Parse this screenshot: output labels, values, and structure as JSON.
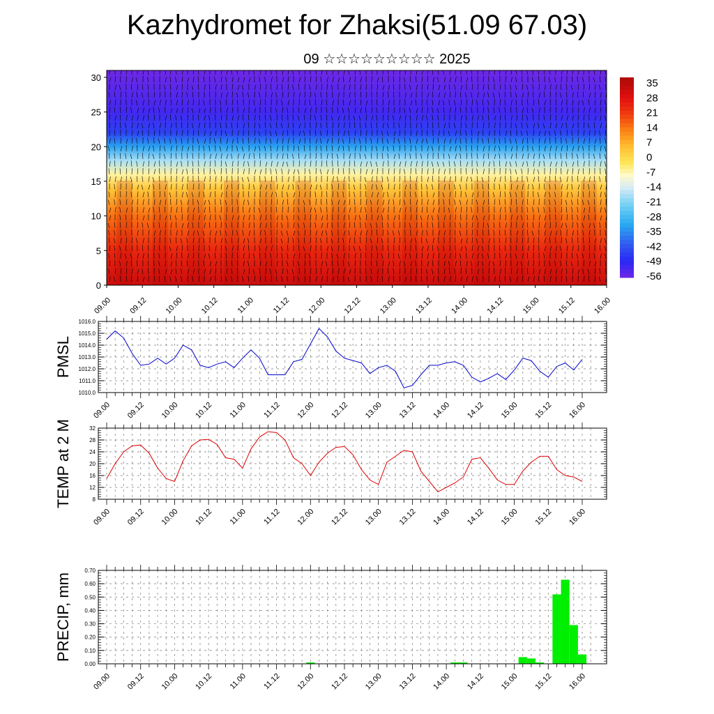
{
  "header": {
    "title": "Kazhydromet for Zhaksi(51.09 67.03)",
    "subtitle": "09 ☆☆☆☆☆☆☆☆☆ 2025"
  },
  "chart_data": [
    {
      "type": "heatmap",
      "name": "cross-section",
      "x_ticks": [
        "09.00",
        "09.12",
        "10.00",
        "10.12",
        "11.00",
        "11.12",
        "12.00",
        "12.12",
        "13.00",
        "13.12",
        "14.00",
        "14.12",
        "15.00",
        "15.12",
        "16.00"
      ],
      "y_ticks": [
        "0",
        "5",
        "10",
        "15",
        "20",
        "25",
        "30"
      ],
      "ylim": [
        0,
        31
      ],
      "colorbar_labels": [
        "35",
        "28",
        "21",
        "14",
        "7",
        "0",
        "-7",
        "-14",
        "-21",
        "-28",
        "-35",
        "-42",
        "-49",
        "-56"
      ],
      "colorbar_range": [
        -60,
        38
      ],
      "level_profile": [
        {
          "y": 0,
          "v": 32
        },
        {
          "y": 5,
          "v": 24
        },
        {
          "y": 10,
          "v": 14
        },
        {
          "y": 14,
          "v": 2
        },
        {
          "y": 16,
          "v": -8
        },
        {
          "y": 18,
          "v": -20
        },
        {
          "y": 20,
          "v": -35
        },
        {
          "y": 22,
          "v": -48
        },
        {
          "y": 25,
          "v": -55
        },
        {
          "y": 31,
          "v": -60
        }
      ]
    },
    {
      "type": "line",
      "name": "pmsl",
      "ylabel": "PMSL",
      "ylim": [
        1010.0,
        1016.0
      ],
      "y_ticks": [
        "1010.0",
        "1011.0",
        "1012.0",
        "1013.0",
        "1014.0",
        "1015.0",
        "1016.0"
      ],
      "x_ticks": [
        "09.00",
        "09.12",
        "10.00",
        "10.12",
        "11.00",
        "11.12",
        "12.00",
        "12.12",
        "13.00",
        "13.12",
        "14.00",
        "14.12",
        "15.00",
        "15.12",
        "16.00"
      ],
      "color": "#0000cc",
      "values": [
        1014.5,
        1015.2,
        1014.6,
        1013.3,
        1012.3,
        1012.4,
        1012.9,
        1012.4,
        1012.9,
        1014.0,
        1013.6,
        1012.3,
        1012.1,
        1012.4,
        1012.6,
        1012.1,
        1012.9,
        1013.6,
        1012.9,
        1011.5,
        1011.5,
        1011.5,
        1012.6,
        1012.8,
        1014.1,
        1015.4,
        1014.7,
        1013.5,
        1012.9,
        1012.7,
        1012.5,
        1011.6,
        1012.1,
        1012.3,
        1011.8,
        1010.4,
        1010.6,
        1011.5,
        1012.3,
        1012.3,
        1012.5,
        1012.6,
        1012.3,
        1011.3,
        1010.9,
        1011.2,
        1011.6,
        1011.1,
        1011.9,
        1012.9,
        1012.7,
        1011.8,
        1011.3,
        1012.2,
        1012.5,
        1011.9,
        1012.8
      ]
    },
    {
      "type": "line",
      "name": "temp",
      "ylabel": "TEMP at 2 M",
      "ylim": [
        8,
        32
      ],
      "y_ticks": [
        "8",
        "12",
        "16",
        "20",
        "24",
        "28",
        "32"
      ],
      "x_ticks": [
        "09.00",
        "09.12",
        "10.00",
        "10.12",
        "11.00",
        "11.12",
        "12.00",
        "12.12",
        "13.00",
        "13.12",
        "14.00",
        "14.12",
        "15.00",
        "15.12",
        "16.00"
      ],
      "color": "#dd0000",
      "values": [
        15.0,
        20.0,
        24.0,
        26.0,
        26.3,
        23.5,
        18.5,
        15.0,
        14.0,
        21.0,
        26.0,
        28.0,
        28.2,
        26.5,
        22.0,
        21.5,
        18.5,
        25.0,
        29.0,
        30.8,
        30.5,
        28.0,
        22.0,
        20.0,
        16.0,
        20.5,
        23.5,
        25.5,
        25.8,
        23.0,
        18.0,
        14.5,
        13.0,
        20.5,
        22.5,
        24.5,
        24.0,
        17.5,
        14.0,
        10.5,
        12.0,
        13.5,
        15.5,
        21.5,
        22.0,
        18.5,
        14.5,
        13.0,
        13.0,
        17.5,
        20.5,
        22.5,
        22.5,
        18.0,
        16.0,
        15.5,
        14.0
      ]
    },
    {
      "type": "bar",
      "name": "precip",
      "ylabel": "PRECIP, mm",
      "ylim": [
        0.0,
        0.7
      ],
      "y_ticks": [
        "0.00",
        "0.10",
        "0.20",
        "0.30",
        "0.40",
        "0.50",
        "0.60",
        "0.70"
      ],
      "x_ticks": [
        "09.00",
        "09.12",
        "10.00",
        "10.12",
        "11.00",
        "11.12",
        "12.00",
        "12.12",
        "13.00",
        "13.12",
        "14.00",
        "14.12",
        "15.00",
        "15.12",
        "16.00"
      ],
      "color": "#00ee00",
      "values": [
        0,
        0,
        0,
        0,
        0,
        0,
        0,
        0,
        0,
        0,
        0,
        0,
        0,
        0,
        0,
        0,
        0,
        0,
        0,
        0,
        0,
        0,
        0,
        0,
        0.01,
        0,
        0,
        0,
        0,
        0,
        0,
        0,
        0,
        0,
        0,
        0,
        0,
        0,
        0,
        0,
        0,
        0.01,
        0.01,
        0,
        0,
        0,
        0,
        0,
        0,
        0.05,
        0.04,
        0.01,
        0,
        0.52,
        0.63,
        0.29,
        0.07
      ]
    }
  ]
}
